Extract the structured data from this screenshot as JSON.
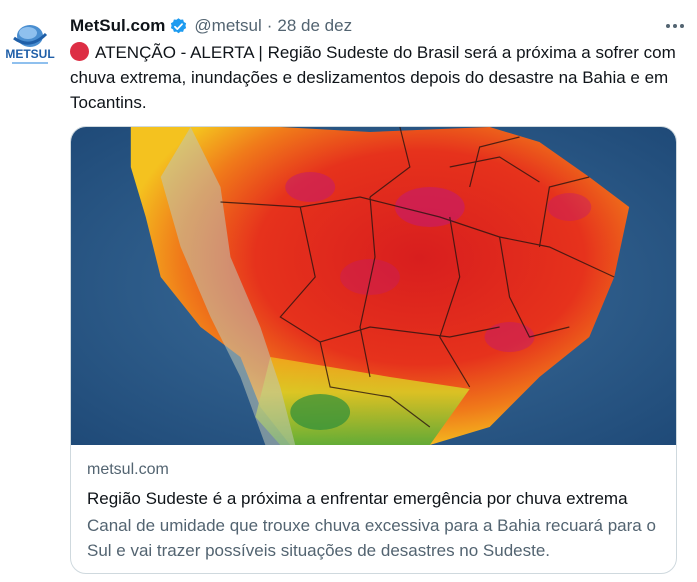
{
  "tweet": {
    "author_name": "MetSul.com",
    "handle": "@metsul",
    "separator": "·",
    "date": "28 de dez",
    "avatar_text": "METSUL",
    "text": "ATENÇÃO - ALERTA | Região Sudeste do Brasil será a próxima a sofrer com chuva extrema, inundações e deslizamentos depois do desastre na Bahia e em Tocantins."
  },
  "card": {
    "domain": "metsul.com",
    "title": "Região Sudeste é a próxima a enfrentar emergência por chuva extrema",
    "description": "Canal de umidade que trouxe chuva excessiva para a Bahia recuará para o Sul e vai trazer possíveis situações de desastres no Sudeste."
  },
  "icons": {
    "verified": "verified-badge-icon",
    "more": "more-options-icon",
    "alert": "red-circle-icon"
  },
  "colors": {
    "verified": "#1d9bf0",
    "alert": "#dd2e44",
    "brand_blue": "#1f5fa8",
    "secondary_text": "#536471"
  }
}
